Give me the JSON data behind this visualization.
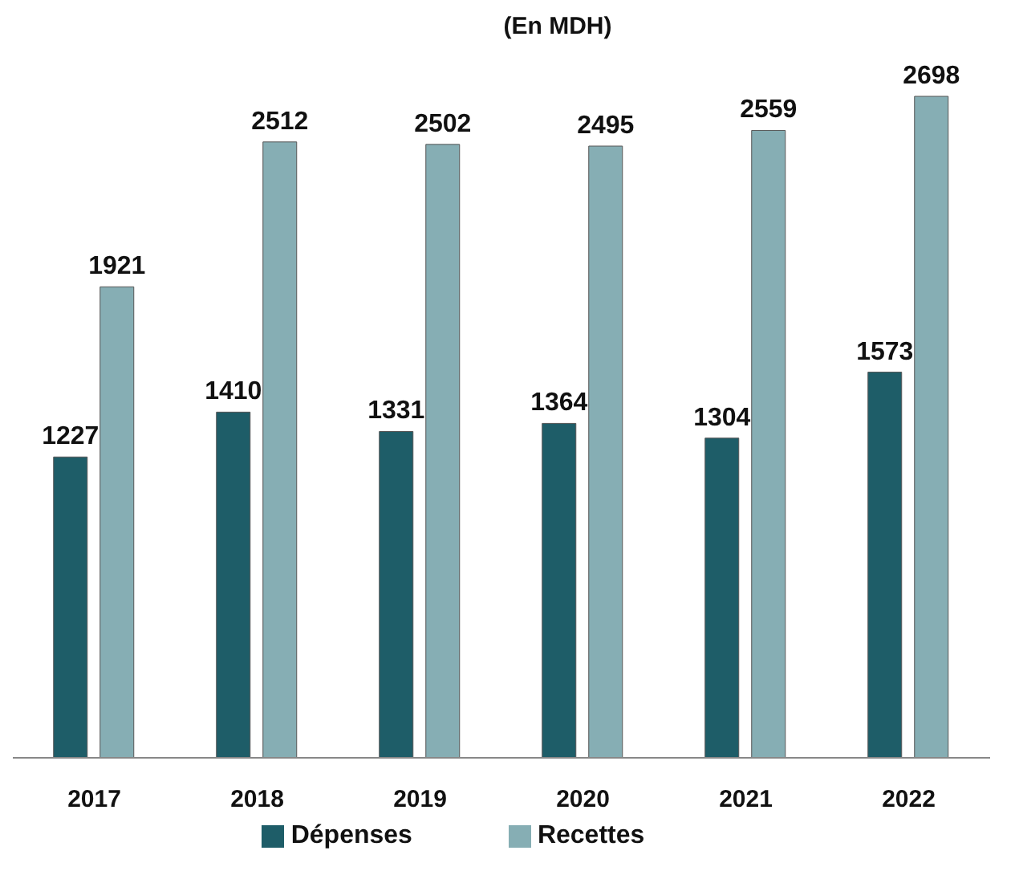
{
  "chart_data": {
    "type": "bar",
    "title": "(En MDH)",
    "categories": [
      "2017",
      "2018",
      "2019",
      "2020",
      "2021",
      "2022"
    ],
    "series": [
      {
        "name": "Dépenses",
        "color": "#1e5d68",
        "values": [
          1227,
          1410,
          1331,
          1364,
          1304,
          1573
        ]
      },
      {
        "name": "Recettes",
        "color": "#86aeb4",
        "values": [
          1921,
          2512,
          2502,
          2495,
          2559,
          2698
        ]
      }
    ],
    "data_labels": true,
    "legend": "bottom",
    "grid": false
  }
}
